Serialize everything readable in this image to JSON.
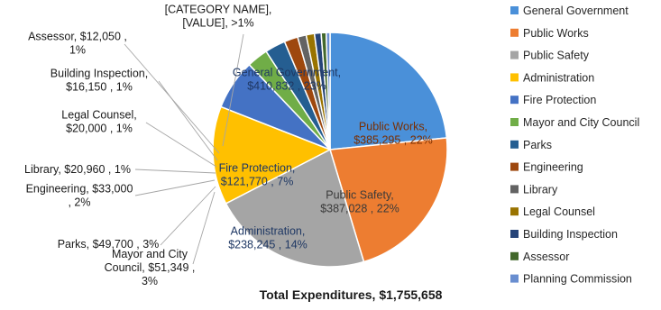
{
  "chart_data": {
    "type": "pie",
    "total_label": "Total Expenditures, $1,755,658",
    "slices": [
      {
        "name": "General Government",
        "value": 410832,
        "label_lines": [
          "General Government,",
          "$410,832 , 23%"
        ],
        "color": "#4a90d9"
      },
      {
        "name": "Public Works",
        "value": 385295,
        "label_lines": [
          "Public Works,",
          "$385,295 , 22%"
        ],
        "color": "#ed7d31"
      },
      {
        "name": "Public Safety",
        "value": 387028,
        "label_lines": [
          "Public Safety,",
          "$387,028 , 22%"
        ],
        "color": "#a5a5a5"
      },
      {
        "name": "Administration",
        "value": 238245,
        "label_lines": [
          "Administration,",
          "$238,245 , 14%"
        ],
        "color": "#ffc000"
      },
      {
        "name": "Fire Protection",
        "value": 121770,
        "label_lines": [
          "Fire Protection,",
          "$121,770 , 7%"
        ],
        "color": "#4472c4"
      },
      {
        "name": "Mayor and City Council",
        "value": 51349,
        "label_lines": [
          "Mayor and City",
          "Council,  $51,349 ,",
          "3%"
        ],
        "color": "#70ad47"
      },
      {
        "name": "Parks",
        "value": 49700,
        "label_lines": [
          "Parks,  $49,700 , 3%"
        ],
        "color": "#255e91"
      },
      {
        "name": "Engineering",
        "value": 33000,
        "label_lines": [
          "Engineering,  $33,000",
          ", 2%"
        ],
        "color": "#9e480e"
      },
      {
        "name": "Library",
        "value": 20960,
        "label_lines": [
          "Library,  $20,960 , 1%"
        ],
        "color": "#636363"
      },
      {
        "name": "Legal Counsel",
        "value": 20000,
        "label_lines": [
          "Legal Counsel,",
          "$20,000 , 1%"
        ],
        "color": "#997300"
      },
      {
        "name": "Building Inspection",
        "value": 16150,
        "label_lines": [
          "Building Inspection,",
          "$16,150 , 1%"
        ],
        "color": "#264478"
      },
      {
        "name": "Assessor",
        "value": 12050,
        "label_lines": [
          "Assessor,  $12,050 ,",
          "1%"
        ],
        "color": "#43682b"
      },
      {
        "name": "Planning Commission",
        "value": 9279,
        "label_lines": [
          "[CATEGORY NAME],",
          "[VALUE], >1%"
        ],
        "color": "#698ed0"
      }
    ],
    "legend_position": "right"
  }
}
